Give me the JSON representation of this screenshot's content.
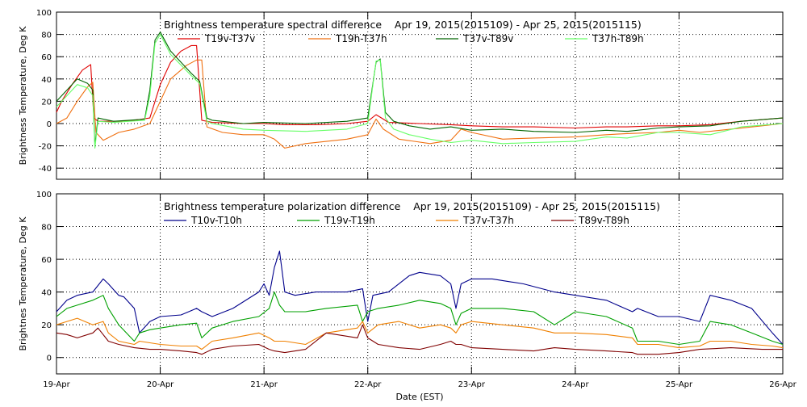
{
  "xlabel": "Date (EST)",
  "x_ticks": [
    "19-Apr",
    "20-Apr",
    "21-Apr",
    "22-Apr",
    "23-Apr",
    "24-Apr",
    "25-Apr",
    "26-Apr"
  ],
  "chart_data": [
    {
      "type": "line",
      "title": "Brightness temperature spectral difference    Apr 19, 2015(2015109) - Apr 25, 2015(2015115)",
      "ylabel": "Brightness Temperature, Deg K",
      "xlim": [
        0,
        7
      ],
      "ylim": [
        -50,
        100
      ],
      "yticks": [
        -40,
        -20,
        0,
        20,
        40,
        60,
        80,
        100
      ],
      "grid": true,
      "legend": "top",
      "series": [
        {
          "name": "T19v-T37v",
          "color": "#e00000",
          "x": [
            0,
            0.05,
            0.15,
            0.25,
            0.33,
            0.36,
            0.4,
            0.6,
            0.75,
            0.9,
            1.0,
            1.1,
            1.2,
            1.3,
            1.35,
            1.4,
            1.5,
            1.8,
            2.0,
            2.2,
            2.5,
            2.8,
            3.0,
            3.08,
            3.15,
            3.2,
            3.5,
            3.8,
            4.0,
            4.3,
            4.6,
            5.0,
            5.3,
            5.5,
            5.8,
            6.0,
            6.3,
            6.6,
            7.0
          ],
          "y": [
            10,
            20,
            35,
            48,
            53,
            5,
            2,
            2,
            3,
            5,
            35,
            55,
            65,
            70,
            70,
            3,
            1,
            0,
            0,
            -1,
            -1,
            0,
            2,
            8,
            4,
            1,
            0,
            -1,
            -2,
            -3,
            -3,
            -4,
            -3,
            -3,
            -2,
            -2,
            -1,
            2,
            5
          ]
        },
        {
          "name": "T19h-T37h",
          "color": "#f07010",
          "x": [
            0,
            0.1,
            0.2,
            0.3,
            0.35,
            0.38,
            0.45,
            0.6,
            0.75,
            0.9,
            1.0,
            1.1,
            1.25,
            1.35,
            1.4,
            1.45,
            1.6,
            1.8,
            2.0,
            2.1,
            2.2,
            2.4,
            2.6,
            2.8,
            3.0,
            3.08,
            3.15,
            3.3,
            3.6,
            3.8,
            3.9,
            4.0,
            4.3,
            4.6,
            5.0,
            5.3,
            5.5,
            5.8,
            6.0,
            6.2,
            6.5,
            6.8,
            7.0
          ],
          "y": [
            0,
            5,
            20,
            33,
            37,
            -8,
            -15,
            -8,
            -5,
            0,
            20,
            40,
            52,
            57,
            57,
            -3,
            -8,
            -10,
            -10,
            -14,
            -22,
            -18,
            -16,
            -14,
            -10,
            4,
            -5,
            -14,
            -18,
            -15,
            -5,
            -8,
            -14,
            -13,
            -12,
            -10,
            -9,
            -8,
            -6,
            -8,
            -5,
            -2,
            0
          ]
        },
        {
          "name": "T37v-T89v",
          "color": "#006400",
          "x": [
            0,
            0.1,
            0.2,
            0.3,
            0.35,
            0.37,
            0.4,
            0.55,
            0.7,
            0.85,
            0.9,
            0.95,
            1.0,
            1.1,
            1.3,
            1.38,
            1.45,
            1.5,
            1.8,
            2.0,
            2.4,
            2.8,
            3.0,
            3.08,
            3.12,
            3.17,
            3.25,
            3.4,
            3.6,
            3.8,
            4.0,
            4.3,
            4.6,
            5.0,
            5.3,
            5.5,
            5.8,
            6.0,
            6.3,
            6.6,
            7.0
          ],
          "y": [
            20,
            30,
            40,
            36,
            30,
            -20,
            5,
            2,
            3,
            4,
            30,
            75,
            82,
            65,
            45,
            38,
            5,
            3,
            0,
            1,
            0,
            2,
            5,
            55,
            58,
            10,
            2,
            -2,
            -5,
            -3,
            -6,
            -5,
            -7,
            -8,
            -6,
            -7,
            -4,
            -3,
            -2,
            2,
            5
          ]
        },
        {
          "name": "T37h-T89h",
          "color": "#66ff66",
          "x": [
            0,
            0.1,
            0.2,
            0.3,
            0.35,
            0.37,
            0.4,
            0.55,
            0.7,
            0.85,
            0.9,
            0.95,
            1.0,
            1.1,
            1.3,
            1.38,
            1.45,
            1.5,
            1.8,
            2.0,
            2.4,
            2.8,
            3.0,
            3.08,
            3.12,
            3.17,
            3.25,
            3.4,
            3.6,
            3.8,
            4.0,
            4.3,
            4.6,
            5.0,
            5.3,
            5.5,
            5.8,
            6.0,
            6.3,
            6.6,
            7.0
          ],
          "y": [
            15,
            25,
            35,
            32,
            25,
            -22,
            2,
            1,
            2,
            3,
            25,
            72,
            80,
            62,
            43,
            36,
            2,
            0,
            -5,
            -6,
            -7,
            -5,
            0,
            56,
            57,
            5,
            -5,
            -10,
            -14,
            -17,
            -15,
            -18,
            -17,
            -16,
            -12,
            -13,
            -8,
            -8,
            -10,
            -3,
            0
          ]
        }
      ]
    },
    {
      "type": "line",
      "title": "Brightness temperature polarization difference    Apr 19, 2015(2015109) - Apr 25, 2015(2015115)",
      "ylabel": "Brightnes Temperature, Deg K",
      "xlim": [
        0,
        7
      ],
      "ylim": [
        -10,
        100
      ],
      "yticks": [
        0,
        20,
        40,
        60,
        80,
        100
      ],
      "grid": true,
      "legend": "top",
      "series": [
        {
          "name": "T10v-T10h",
          "color": "#00008b",
          "x": [
            0,
            0.1,
            0.2,
            0.35,
            0.45,
            0.5,
            0.6,
            0.65,
            0.75,
            0.8,
            0.9,
            1.0,
            1.2,
            1.35,
            1.4,
            1.5,
            1.7,
            1.95,
            2.0,
            2.05,
            2.1,
            2.15,
            2.2,
            2.3,
            2.5,
            2.8,
            2.95,
            3.0,
            3.05,
            3.2,
            3.4,
            3.5,
            3.7,
            3.8,
            3.85,
            3.9,
            4.0,
            4.2,
            4.5,
            4.8,
            5.0,
            5.3,
            5.55,
            5.6,
            5.8,
            6.0,
            6.2,
            6.3,
            6.5,
            6.7,
            6.9,
            7.0
          ],
          "y": [
            28,
            35,
            38,
            40,
            48,
            45,
            38,
            37,
            30,
            15,
            22,
            25,
            26,
            30,
            28,
            25,
            30,
            40,
            45,
            38,
            55,
            65,
            40,
            38,
            40,
            40,
            42,
            22,
            38,
            40,
            50,
            52,
            50,
            45,
            30,
            45,
            48,
            48,
            45,
            40,
            38,
            35,
            28,
            30,
            25,
            25,
            22,
            38,
            35,
            30,
            15,
            8
          ]
        },
        {
          "name": "T19v-T19h",
          "color": "#00a000",
          "x": [
            0,
            0.1,
            0.2,
            0.35,
            0.45,
            0.5,
            0.6,
            0.75,
            0.8,
            0.9,
            1.0,
            1.2,
            1.35,
            1.4,
            1.5,
            1.7,
            1.95,
            2.05,
            2.1,
            2.15,
            2.2,
            2.4,
            2.6,
            2.9,
            2.95,
            3.0,
            3.1,
            3.3,
            3.5,
            3.7,
            3.8,
            3.85,
            3.9,
            4.0,
            4.3,
            4.6,
            4.8,
            5.0,
            5.3,
            5.55,
            5.6,
            5.8,
            6.0,
            6.2,
            6.3,
            6.5,
            6.7,
            6.9,
            7.0
          ],
          "y": [
            25,
            30,
            32,
            35,
            38,
            30,
            20,
            10,
            15,
            17,
            18,
            20,
            21,
            12,
            18,
            22,
            25,
            30,
            40,
            32,
            28,
            28,
            30,
            32,
            22,
            28,
            30,
            32,
            35,
            33,
            30,
            20,
            27,
            30,
            30,
            28,
            20,
            28,
            25,
            18,
            10,
            10,
            8,
            10,
            22,
            20,
            15,
            10,
            8
          ]
        },
        {
          "name": "T37v-T37h",
          "color": "#f08000",
          "x": [
            0,
            0.1,
            0.2,
            0.35,
            0.45,
            0.5,
            0.6,
            0.75,
            0.8,
            0.9,
            1.0,
            1.2,
            1.35,
            1.4,
            1.5,
            1.7,
            1.95,
            2.05,
            2.1,
            2.2,
            2.4,
            2.6,
            2.9,
            2.95,
            3.0,
            3.1,
            3.3,
            3.5,
            3.7,
            3.8,
            3.85,
            3.9,
            4.0,
            4.3,
            4.6,
            4.8,
            5.0,
            5.3,
            5.55,
            5.6,
            5.8,
            6.0,
            6.2,
            6.3,
            6.5,
            6.7,
            6.9,
            7.0
          ],
          "y": [
            20,
            22,
            24,
            20,
            22,
            15,
            10,
            8,
            10,
            9,
            8,
            7,
            7,
            5,
            10,
            12,
            15,
            12,
            10,
            10,
            8,
            15,
            18,
            22,
            15,
            20,
            22,
            18,
            20,
            18,
            15,
            20,
            22,
            20,
            18,
            15,
            15,
            14,
            12,
            8,
            8,
            6,
            7,
            10,
            10,
            8,
            7,
            6
          ]
        },
        {
          "name": "T89v-T89h",
          "color": "#800000",
          "x": [
            0,
            0.1,
            0.2,
            0.35,
            0.4,
            0.5,
            0.6,
            0.75,
            0.9,
            1.0,
            1.2,
            1.35,
            1.4,
            1.5,
            1.7,
            1.95,
            2.05,
            2.1,
            2.2,
            2.4,
            2.6,
            2.9,
            2.95,
            3.0,
            3.1,
            3.3,
            3.5,
            3.7,
            3.8,
            3.85,
            3.9,
            4.0,
            4.3,
            4.6,
            4.8,
            5.0,
            5.3,
            5.55,
            5.6,
            5.8,
            6.0,
            6.2,
            6.5,
            6.8,
            7.0
          ],
          "y": [
            15,
            14,
            12,
            15,
            18,
            10,
            8,
            6,
            5,
            5,
            4,
            3,
            2,
            5,
            7,
            8,
            5,
            4,
            3,
            5,
            15,
            12,
            20,
            12,
            8,
            6,
            5,
            8,
            10,
            8,
            8,
            6,
            5,
            4,
            6,
            5,
            4,
            3,
            2,
            2,
            3,
            5,
            6,
            5,
            5
          ]
        }
      ]
    }
  ]
}
